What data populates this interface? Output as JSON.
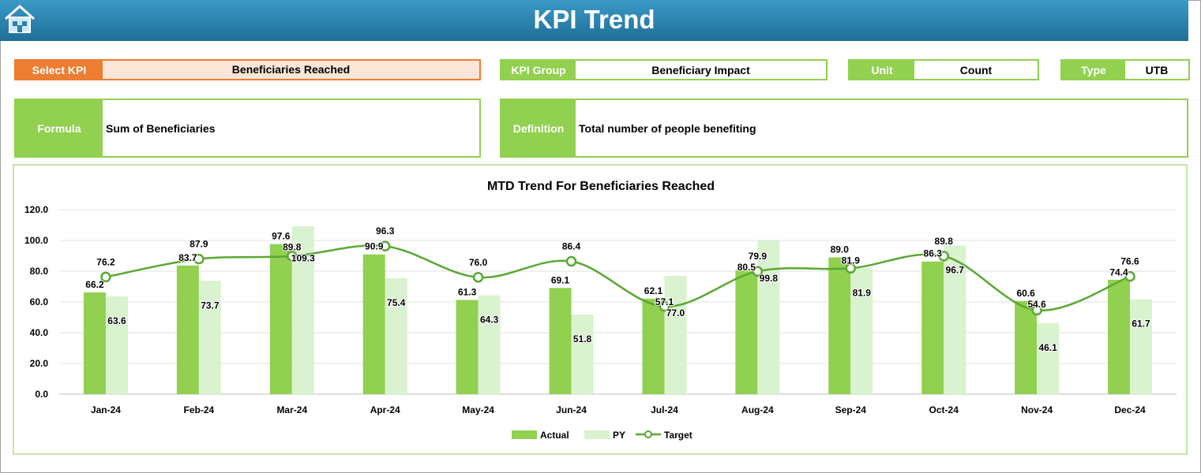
{
  "header": {
    "title": "KPI Trend",
    "home_icon": "home-icon"
  },
  "kpi": {
    "select_label": "Select KPI",
    "select_value": "Beneficiaries Reached",
    "group_label": "KPI Group",
    "group_value": "Beneficiary Impact",
    "unit_label": "Unit",
    "unit_value": "Count",
    "type_label": "Type",
    "type_value": "UTB",
    "formula_label": "Formula",
    "formula_value": "Sum of Beneficiaries",
    "definition_label": "Definition",
    "definition_value": "Total number of people benefiting"
  },
  "colors": {
    "accent_green": "#92d050",
    "orange": "#ed7d31",
    "actual": "#92d050",
    "py": "#d9f2d0",
    "target": "#5aa832"
  },
  "chart_data": {
    "type": "bar",
    "title": "MTD Trend For Beneficiaries Reached",
    "categories": [
      "Jan-24",
      "Feb-24",
      "Mar-24",
      "Apr-24",
      "May-24",
      "Jun-24",
      "Jul-24",
      "Aug-24",
      "Sep-24",
      "Oct-24",
      "Nov-24",
      "Dec-24"
    ],
    "ylim": [
      0,
      120
    ],
    "yticks": [
      "0.0",
      "20.0",
      "40.0",
      "60.0",
      "80.0",
      "100.0",
      "120.0"
    ],
    "grid": true,
    "legend": "bottom",
    "series": [
      {
        "name": "Actual",
        "type": "bar",
        "values": [
          66.2,
          83.7,
          97.6,
          90.9,
          61.3,
          69.1,
          62.1,
          80.5,
          89.0,
          86.3,
          60.6,
          74.4
        ]
      },
      {
        "name": "PY",
        "type": "bar",
        "values": [
          63.6,
          73.7,
          109.3,
          75.4,
          64.3,
          51.8,
          77.0,
          99.8,
          81.9,
          96.7,
          46.1,
          61.7
        ]
      },
      {
        "name": "Target",
        "type": "line",
        "values": [
          76.2,
          87.9,
          89.8,
          96.3,
          76.0,
          86.4,
          57.1,
          79.9,
          81.9,
          89.8,
          54.6,
          76.6
        ]
      }
    ]
  }
}
